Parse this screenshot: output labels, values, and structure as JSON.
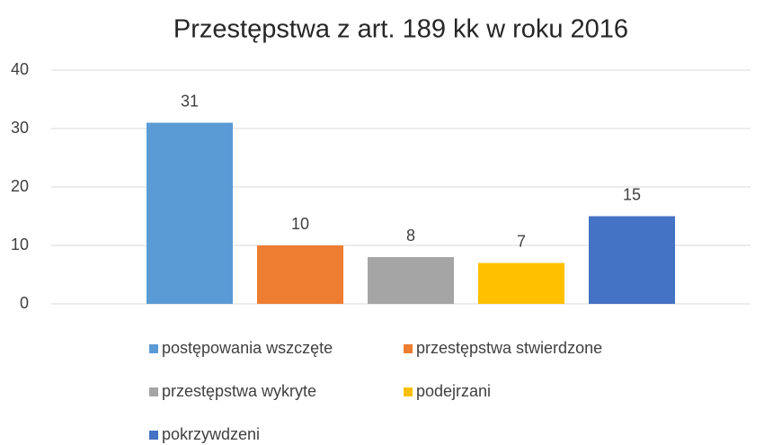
{
  "chart_data": {
    "type": "bar",
    "title": "Przestępstwa z art. 189 kk w roku 2016",
    "series": [
      {
        "name": "postępowania wszczęte",
        "color": "#5b9bd5",
        "values": [
          31
        ]
      },
      {
        "name": "przestępstwa stwierdzone",
        "color": "#ed7d31",
        "values": [
          10
        ]
      },
      {
        "name": "przestępstwa wykryte",
        "color": "#a5a5a5",
        "values": [
          8
        ]
      },
      {
        "name": "podejrzani",
        "color": "#ffc000",
        "values": [
          7
        ]
      },
      {
        "name": "pokrzywdzeni",
        "color": "#4472c4",
        "values": [
          15
        ]
      }
    ],
    "ylim": [
      0,
      40
    ],
    "yticks": [
      0,
      10,
      20,
      30,
      40
    ],
    "grid": true,
    "legend": "bottom",
    "data_labels": true
  }
}
